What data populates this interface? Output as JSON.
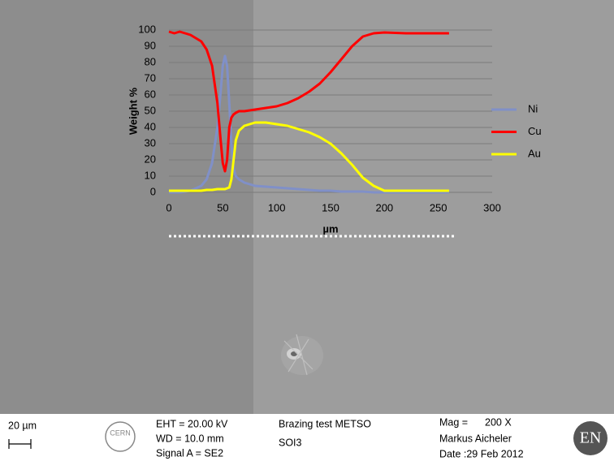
{
  "chart_data": {
    "type": "line",
    "y_label": "Weight %",
    "x_label": "µm",
    "x": [
      0,
      5,
      10,
      20,
      30,
      35,
      40,
      45,
      48,
      50,
      52,
      54,
      56,
      58,
      60,
      62,
      65,
      70,
      80,
      90,
      100,
      110,
      120,
      130,
      140,
      150,
      160,
      170,
      180,
      190,
      200,
      220,
      240,
      260
    ],
    "series": [
      {
        "name": "Ni",
        "color": "#8090c8",
        "values": [
          0,
          0,
          0,
          1,
          4,
          8,
          18,
          40,
          62,
          78,
          84,
          78,
          55,
          30,
          15,
          10,
          8,
          6,
          4,
          3.5,
          3,
          2.5,
          2,
          1.5,
          1,
          1,
          0.5,
          0.5,
          0.5,
          0,
          0,
          0,
          0,
          0
        ]
      },
      {
        "name": "Cu",
        "color": "#ff0000",
        "values": [
          99,
          98,
          99,
          97,
          93,
          88,
          78,
          55,
          32,
          18,
          13,
          20,
          40,
          46,
          48,
          49,
          50,
          50,
          51,
          52,
          53,
          55,
          58,
          62,
          67,
          74,
          82,
          90,
          96,
          98,
          98.5,
          98,
          98,
          98
        ]
      },
      {
        "name": "Au",
        "color": "#ffff00",
        "values": [
          1,
          1,
          1,
          1,
          1,
          1.5,
          1.5,
          2,
          2,
          2,
          2,
          2.5,
          3,
          8,
          20,
          32,
          38,
          41,
          43,
          43,
          42,
          41,
          39,
          37,
          34,
          30,
          24,
          17,
          9,
          4,
          1,
          1,
          1,
          1
        ]
      }
    ],
    "xlim": [
      0,
      300
    ],
    "xticks": [
      0,
      50,
      100,
      150,
      200,
      250,
      300
    ],
    "ylim": [
      0,
      100
    ],
    "yticks": [
      0,
      10,
      20,
      30,
      40,
      50,
      60,
      70,
      80,
      90,
      100
    ],
    "grid": true,
    "legend": "right"
  },
  "info_bar": {
    "scale": "20 µm",
    "logo_left": "CERN",
    "eht": "EHT = 20.00 kV",
    "wd": "WD = 10.0 mm",
    "signal": "Signal A = SE2",
    "project": "Brazing test METSO",
    "sample": "SOI3",
    "mag_label": "Mag =",
    "mag_value": "200 X",
    "operator": "Markus Aicheler",
    "date": "Date :29 Feb 2012",
    "logo_right": "EN"
  }
}
